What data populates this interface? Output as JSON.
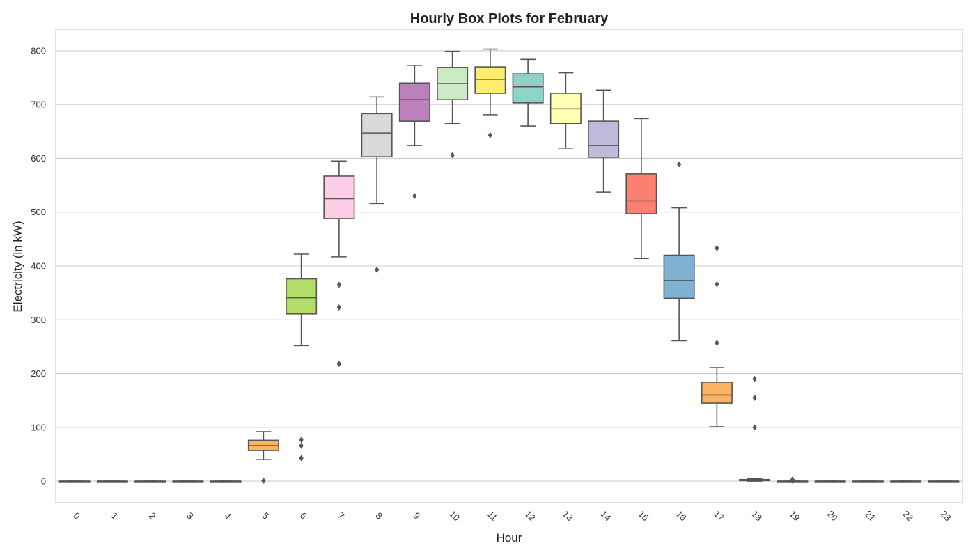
{
  "chart_data": {
    "type": "box",
    "title": "Hourly Box Plots for February",
    "xlabel": "Hour",
    "ylabel": "Electricity (in kW)",
    "ylim": [
      -40,
      840
    ],
    "yticks": [
      0,
      100,
      200,
      300,
      400,
      500,
      600,
      700,
      800
    ],
    "grid": "horizontal",
    "categories": [
      "0",
      "1",
      "2",
      "3",
      "4",
      "5",
      "6",
      "7",
      "8",
      "9",
      "10",
      "11",
      "12",
      "13",
      "14",
      "15",
      "16",
      "17",
      "18",
      "19",
      "20",
      "21",
      "22",
      "23"
    ],
    "boxes": [
      {
        "hour": "0",
        "whisker_low": 0,
        "q1": 0,
        "median": 0,
        "q3": 0,
        "whisker_high": 0,
        "outliers": [],
        "color": "#8dd3c7"
      },
      {
        "hour": "1",
        "whisker_low": 0,
        "q1": 0,
        "median": 0,
        "q3": 0,
        "whisker_high": 0,
        "outliers": [],
        "color": "#ffffb3"
      },
      {
        "hour": "2",
        "whisker_low": 0,
        "q1": 0,
        "median": 0,
        "q3": 0,
        "whisker_high": 0,
        "outliers": [],
        "color": "#bebada"
      },
      {
        "hour": "3",
        "whisker_low": 0,
        "q1": 0,
        "median": 0,
        "q3": 0,
        "whisker_high": 0,
        "outliers": [],
        "color": "#fb8072"
      },
      {
        "hour": "4",
        "whisker_low": 0,
        "q1": 0,
        "median": 0,
        "q3": 0,
        "whisker_high": 0,
        "outliers": [],
        "color": "#80b1d3"
      },
      {
        "hour": "5",
        "whisker_low": 40,
        "q1": 57,
        "median": 66,
        "q3": 76,
        "whisker_high": 92,
        "outliers": [
          1
        ],
        "color": "#fdb462"
      },
      {
        "hour": "6",
        "whisker_low": 252,
        "q1": 311,
        "median": 341,
        "q3": 376,
        "whisker_high": 422,
        "outliers": [
          77,
          66,
          43
        ],
        "color": "#b3de69"
      },
      {
        "hour": "7",
        "whisker_low": 417,
        "q1": 488,
        "median": 525,
        "q3": 567,
        "whisker_high": 595,
        "outliers": [
          365,
          323,
          218
        ],
        "color": "#fccde5"
      },
      {
        "hour": "8",
        "whisker_low": 516,
        "q1": 603,
        "median": 647,
        "q3": 683,
        "whisker_high": 714,
        "outliers": [
          393
        ],
        "color": "#d9d9d9"
      },
      {
        "hour": "9",
        "whisker_low": 624,
        "q1": 669,
        "median": 709,
        "q3": 740,
        "whisker_high": 773,
        "outliers": [
          530
        ],
        "color": "#bc80bd"
      },
      {
        "hour": "10",
        "whisker_low": 665,
        "q1": 709,
        "median": 739,
        "q3": 769,
        "whisker_high": 799,
        "outliers": [
          606
        ],
        "color": "#ccebc5"
      },
      {
        "hour": "11",
        "whisker_low": 681,
        "q1": 721,
        "median": 747,
        "q3": 770,
        "whisker_high": 803,
        "outliers": [
          643
        ],
        "color": "#ffed6f"
      },
      {
        "hour": "12",
        "whisker_low": 660,
        "q1": 703,
        "median": 733,
        "q3": 757,
        "whisker_high": 784,
        "outliers": [],
        "color": "#8dd3c7"
      },
      {
        "hour": "13",
        "whisker_low": 619,
        "q1": 665,
        "median": 692,
        "q3": 721,
        "whisker_high": 759,
        "outliers": [],
        "color": "#ffffb3"
      },
      {
        "hour": "14",
        "whisker_low": 537,
        "q1": 602,
        "median": 624,
        "q3": 669,
        "whisker_high": 727,
        "outliers": [],
        "color": "#bebada"
      },
      {
        "hour": "15",
        "whisker_low": 414,
        "q1": 497,
        "median": 521,
        "q3": 571,
        "whisker_high": 674,
        "outliers": [],
        "color": "#fb8072"
      },
      {
        "hour": "16",
        "whisker_low": 261,
        "q1": 340,
        "median": 373,
        "q3": 420,
        "whisker_high": 508,
        "outliers": [
          589
        ],
        "color": "#80b1d3"
      },
      {
        "hour": "17",
        "whisker_low": 101,
        "q1": 145,
        "median": 160,
        "q3": 184,
        "whisker_high": 211,
        "outliers": [
          433,
          366,
          257
        ],
        "color": "#fdb462"
      },
      {
        "hour": "18",
        "whisker_low": 0,
        "q1": 1,
        "median": 2,
        "q3": 3,
        "whisker_high": 5,
        "outliers": [
          190,
          155,
          100
        ],
        "color": "#b3de69"
      },
      {
        "hour": "19",
        "whisker_low": 0,
        "q1": 0,
        "median": 0,
        "q3": 0,
        "whisker_high": 0,
        "outliers": [
          3,
          1
        ],
        "color": "#fccde5"
      },
      {
        "hour": "20",
        "whisker_low": 0,
        "q1": 0,
        "median": 0,
        "q3": 0,
        "whisker_high": 0,
        "outliers": [],
        "color": "#d9d9d9"
      },
      {
        "hour": "21",
        "whisker_low": 0,
        "q1": 0,
        "median": 0,
        "q3": 0,
        "whisker_high": 0,
        "outliers": [],
        "color": "#bc80bd"
      },
      {
        "hour": "22",
        "whisker_low": 0,
        "q1": 0,
        "median": 0,
        "q3": 0,
        "whisker_high": 0,
        "outliers": [],
        "color": "#ccebc5"
      },
      {
        "hour": "23",
        "whisker_low": 0,
        "q1": 0,
        "median": 0,
        "q3": 0,
        "whisker_high": 0,
        "outliers": [],
        "color": "#ffed6f"
      }
    ],
    "colors": {
      "line": "#555555",
      "grid": "#cccccc",
      "frame": "#cccccc",
      "background": "#ffffff"
    }
  }
}
